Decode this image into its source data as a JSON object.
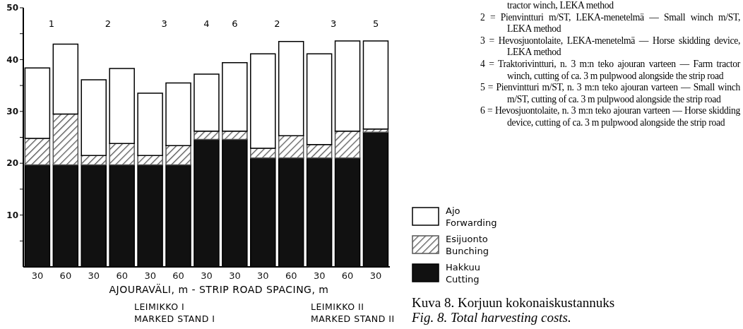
{
  "chart_data": {
    "type": "bar",
    "stacked": true,
    "xlabel": "AJOURAVÄLI, m - STRIP ROAD SPACING, m",
    "categories": [
      "30",
      "60",
      "30",
      "60",
      "30",
      "60",
      "30",
      "30",
      "30",
      "60",
      "30",
      "60",
      "30"
    ],
    "series": [
      {
        "name": "Hakkuu Cutting",
        "color": "#111111",
        "values": [
          19.7,
          19.7,
          19.7,
          19.7,
          19.7,
          19.7,
          24.6,
          24.6,
          21,
          21,
          21,
          21,
          26
        ]
      },
      {
        "name": "Esijuonto Bunching",
        "color": "#555555",
        "values": [
          5.1,
          9.8,
          1.8,
          4.1,
          1.8,
          3.7,
          1.6,
          1.6,
          1.9,
          4.3,
          2.6,
          5.2,
          0.6
        ]
      },
      {
        "name": "Ajo Forwarding",
        "color": "#ffffff",
        "values": [
          13.6,
          13.5,
          14.6,
          14.5,
          12,
          12.1,
          11,
          13.2,
          18.2,
          18.2,
          17.5,
          17.4,
          17
        ]
      }
    ],
    "ylim": [
      0,
      50
    ],
    "yticks": [
      {
        "value": 5,
        "label": null
      },
      10,
      {
        "value": 15,
        "label": null
      },
      20,
      {
        "value": 25,
        "label": null
      },
      30,
      {
        "value": 35,
        "label": null
      },
      40,
      {
        "value": 45,
        "label": null
      },
      50
    ],
    "legend": "right",
    "grid": false,
    "annotations": [
      "1",
      "2",
      "3",
      "4",
      "6",
      "2",
      "3",
      "5",
      "LEIMIKKO I\nMARKED STAND I",
      "LEIMIKKO II\nMARKED STAND II",
      "tractor winch, LEKA method",
      "2 = Pienvintturi m/ST, LEKA-menetelmä — Small winch m/ST, LEKA method",
      "3 = Hevosjuontolaite, LEKA-menetelmä — Horse skidding device, LEKA method",
      "4 = Traktorivintturi, n. 3 m:n teko ajouran varteen — Farm tractor winch, cutting of ca. 3 m pulpwood alongside the strip road",
      "5 = Pienvintturi m/ST, n. 3 m:n teko ajouran varteen — Small winch m/ST, cutting of ca. 3 m pulpwood alongside the strip road",
      "6 = Hevosjuontolaite, n. 3 m:n teko ajouran varteen — Horse skidding device, cutting of ca. 3 m pulpwood alongside the strip road",
      "Kuva 8. Korjuun kokonaiskustannuks",
      "Fig. 8. Total harvesting costs."
    ]
  }
}
